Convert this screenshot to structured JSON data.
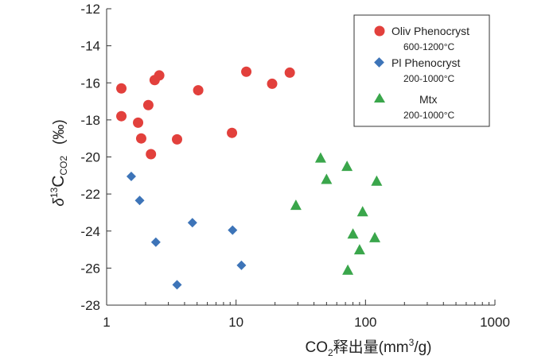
{
  "chart_data": {
    "type": "scatter",
    "title": "",
    "xlabel": "CO2释出量(mm3/g)",
    "xlabel_parts": {
      "pre": "CO",
      "sub": "2",
      "mid": "释出量(mm",
      "sup": "3",
      "post": "/g)"
    },
    "ylabel": "δ13CCO2 (‰)",
    "ylabel_parts": {
      "delta": "δ",
      "sup": "13",
      "base": "C",
      "sub": "CO2",
      "unit": "(‰)"
    },
    "x_scale": "log",
    "xlim": [
      1,
      1000
    ],
    "ylim": [
      -28,
      -12
    ],
    "grid": false,
    "legend_position": "top-right",
    "x_ticks": [
      1,
      10,
      100,
      1000
    ],
    "x_tick_labels": [
      "1",
      "10",
      "100",
      "1000"
    ],
    "y_ticks": [
      -12,
      -14,
      -16,
      -18,
      -20,
      -22,
      -24,
      -26,
      -28
    ],
    "y_tick_labels": [
      "-12",
      "-14",
      "-16",
      "-18",
      "-20",
      "-22",
      "-24",
      "-26",
      "-28"
    ],
    "series": [
      {
        "name": "Oliv Phenocryst",
        "range": "600-1200°C",
        "marker": "circle",
        "color": "#e2403c",
        "points": [
          {
            "x": 1.3,
            "y": -16.3
          },
          {
            "x": 1.3,
            "y": -17.8
          },
          {
            "x": 1.75,
            "y": -18.15
          },
          {
            "x": 1.85,
            "y": -19.0
          },
          {
            "x": 2.1,
            "y": -17.2
          },
          {
            "x": 2.2,
            "y": -19.85
          },
          {
            "x": 2.35,
            "y": -15.85
          },
          {
            "x": 2.55,
            "y": -15.6
          },
          {
            "x": 3.5,
            "y": -19.05
          },
          {
            "x": 5.1,
            "y": -16.4
          },
          {
            "x": 9.3,
            "y": -18.7
          },
          {
            "x": 12.0,
            "y": -15.4
          },
          {
            "x": 19.0,
            "y": -16.05
          },
          {
            "x": 26.0,
            "y": -15.45
          }
        ]
      },
      {
        "name": "Pl Phenocryst",
        "range": "200-1000°C",
        "marker": "diamond",
        "color": "#3d74b8",
        "points": [
          {
            "x": 1.55,
            "y": -21.05
          },
          {
            "x": 1.8,
            "y": -22.35
          },
          {
            "x": 2.4,
            "y": -24.6
          },
          {
            "x": 3.5,
            "y": -26.9
          },
          {
            "x": 4.6,
            "y": -23.55
          },
          {
            "x": 9.4,
            "y": -23.95
          },
          {
            "x": 11.0,
            "y": -25.85
          }
        ]
      },
      {
        "name": "Mtx",
        "range": "200-1000°C",
        "marker": "triangle",
        "color": "#3aa64b",
        "points": [
          {
            "x": 29.0,
            "y": -22.6
          },
          {
            "x": 45.0,
            "y": -20.05
          },
          {
            "x": 50.0,
            "y": -21.2
          },
          {
            "x": 72.0,
            "y": -20.5
          },
          {
            "x": 73.0,
            "y": -26.1
          },
          {
            "x": 80.0,
            "y": -24.15
          },
          {
            "x": 90.0,
            "y": -25.0
          },
          {
            "x": 95.0,
            "y": -22.95
          },
          {
            "x": 118.0,
            "y": -24.35
          },
          {
            "x": 122.0,
            "y": -21.3
          }
        ]
      }
    ]
  }
}
